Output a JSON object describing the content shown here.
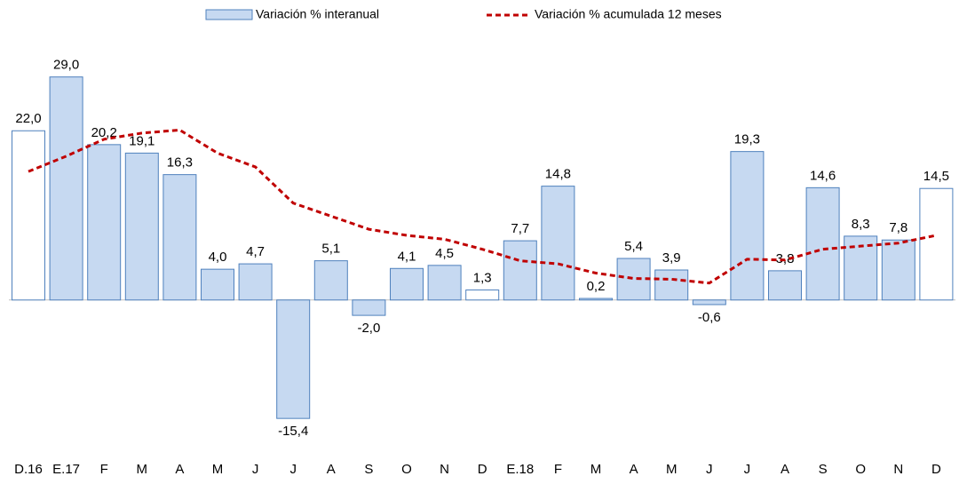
{
  "chart_data": {
    "type": "bar-line",
    "categories": [
      "D.16",
      "E.17",
      "F",
      "M",
      "A",
      "M",
      "J",
      "J",
      "A",
      "S",
      "O",
      "N",
      "D",
      "E.18",
      "F",
      "M",
      "A",
      "M",
      "J",
      "J",
      "A",
      "S",
      "O",
      "N",
      "D"
    ],
    "series": [
      {
        "name": "Variación % interanual",
        "type": "bar",
        "color": "#c6d9f1",
        "stroke": "#4f81bd",
        "bar_colors": [
          "#ffffff",
          "#c6d9f1",
          "#c6d9f1",
          "#c6d9f1",
          "#c6d9f1",
          "#c6d9f1",
          "#c6d9f1",
          "#c6d9f1",
          "#c6d9f1",
          "#c6d9f1",
          "#c6d9f1",
          "#c6d9f1",
          "#ffffff",
          "#c6d9f1",
          "#c6d9f1",
          "#c6d9f1",
          "#c6d9f1",
          "#c6d9f1",
          "#c6d9f1",
          "#c6d9f1",
          "#c6d9f1",
          "#c6d9f1",
          "#c6d9f1",
          "#c6d9f1",
          "#ffffff"
        ],
        "values": [
          22.0,
          29.0,
          20.2,
          19.1,
          16.3,
          4.0,
          4.7,
          -15.4,
          5.1,
          -2.0,
          4.1,
          4.5,
          1.3,
          7.7,
          14.8,
          0.2,
          5.4,
          3.9,
          -0.6,
          19.3,
          3.8,
          14.6,
          8.3,
          7.8,
          14.5
        ],
        "value_labels": [
          "22,0",
          "29,0",
          "20,2",
          "19,1",
          "16,3",
          "4,0",
          "4,7",
          "-15,4",
          "5,1",
          "-2,0",
          "4,1",
          "4,5",
          "1,3",
          "7,7",
          "14,8",
          "0,2",
          "5,4",
          "3,9",
          "-0,6",
          "19,3",
          "3,8",
          "14,6",
          "8,3",
          "7,8",
          "14,5"
        ]
      },
      {
        "name": "Variación % acumulada 12 meses",
        "type": "line",
        "color": "#c00000",
        "dashed": true,
        "values": [
          16.7,
          18.7,
          20.9,
          21.7,
          22.1,
          19.1,
          17.3,
          12.6,
          10.9,
          9.2,
          8.4,
          7.9,
          6.6,
          5.1,
          4.7,
          3.5,
          2.8,
          2.7,
          2.2,
          5.3,
          5.2,
          6.6,
          7.0,
          7.4,
          8.4
        ]
      }
    ],
    "ylim": [
      -20,
      33
    ],
    "legend": "top"
  }
}
